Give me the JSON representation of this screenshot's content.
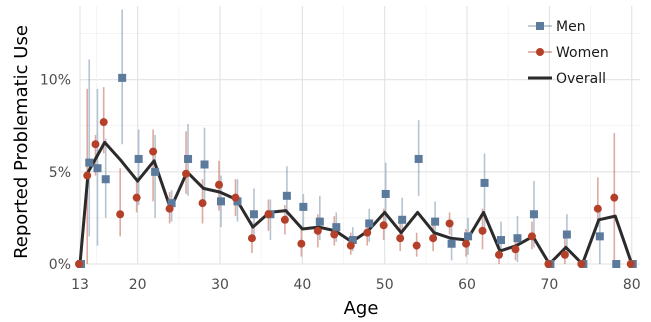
{
  "chart_data": {
    "type": "line",
    "xlabel": "Age",
    "ylabel": "Reported Problematic Use",
    "xlim": [
      13,
      81
    ],
    "ylim": [
      0,
      14
    ],
    "xticks": [
      13,
      20,
      30,
      40,
      50,
      60,
      70,
      80
    ],
    "xtick_labels": [
      "13",
      "20",
      "30",
      "40",
      "50",
      "60",
      "70",
      "80"
    ],
    "yticks": [
      0,
      5,
      10
    ],
    "ytick_labels": [
      "0%",
      "5%",
      "10%"
    ],
    "grid": true,
    "legend_position": "top-right",
    "x": [
      13,
      14,
      15,
      16,
      18,
      20,
      22,
      24,
      26,
      28,
      30,
      32,
      34,
      36,
      38,
      40,
      42,
      44,
      46,
      48,
      50,
      52,
      54,
      56,
      58,
      60,
      62,
      64,
      66,
      68,
      70,
      72,
      74,
      76,
      78,
      80
    ],
    "series": [
      {
        "name": "Men",
        "color": "#5b7a9c",
        "marker": "square",
        "values": [
          0,
          5.5,
          5.2,
          4.6,
          10.1,
          5.7,
          5.0,
          3.3,
          5.7,
          5.4,
          3.4,
          3.4,
          2.7,
          2.7,
          3.7,
          3.1,
          2.3,
          2.0,
          1.3,
          2.2,
          3.8,
          2.4,
          5.7,
          2.3,
          1.1,
          1.5,
          4.4,
          1.3,
          1.4,
          2.7,
          0,
          1.6,
          0,
          1.5,
          0,
          0
        ],
        "err_low": [
          0,
          1.5,
          1.0,
          2.5,
          6.5,
          3.2,
          2.5,
          2.3,
          3.7,
          3.3,
          2.0,
          2.3,
          1.3,
          1.3,
          2.2,
          1.9,
          1.3,
          1.2,
          0.7,
          1.2,
          2.0,
          1.2,
          3.7,
          1.3,
          0.2,
          0.5,
          1.8,
          0.3,
          0.1,
          0.9,
          0,
          0.3,
          0,
          0,
          0,
          0
        ],
        "err_high": [
          0,
          11.1,
          9.5,
          6.8,
          13.8,
          7.3,
          7.0,
          4.0,
          7.6,
          7.4,
          4.8,
          4.6,
          4.1,
          3.5,
          5.3,
          3.8,
          3.7,
          2.8,
          2.0,
          3.0,
          5.5,
          3.6,
          7.8,
          3.4,
          2.1,
          2.5,
          6.0,
          2.3,
          2.6,
          4.5,
          0,
          2.7,
          0,
          3.0,
          0,
          0
        ]
      },
      {
        "name": "Women",
        "color": "#b5402a",
        "marker": "circle",
        "values": [
          0,
          4.8,
          6.5,
          7.7,
          2.7,
          3.6,
          6.1,
          3.0,
          4.9,
          3.3,
          4.3,
          3.6,
          1.4,
          2.7,
          2.4,
          1.1,
          1.8,
          1.6,
          1.0,
          1.7,
          2.1,
          1.4,
          1.0,
          1.4,
          2.2,
          1.1,
          1.8,
          0.5,
          0.8,
          1.5,
          0,
          0.5,
          0,
          3.0,
          3.6,
          0
        ],
        "err_low": [
          0,
          0,
          4.8,
          6.0,
          1.5,
          2.8,
          3.4,
          2.2,
          3.8,
          2.2,
          2.9,
          2.6,
          0.6,
          1.8,
          1.6,
          0.4,
          0.9,
          1.0,
          0.5,
          1.0,
          1.3,
          0.7,
          0.4,
          0.7,
          1.6,
          0.4,
          0.8,
          0,
          0.2,
          0.8,
          0,
          0,
          0,
          2.0,
          0,
          0
        ],
        "err_high": [
          0,
          9.5,
          7.0,
          9.6,
          5.2,
          4.7,
          7.3,
          3.9,
          7.2,
          4.6,
          5.6,
          4.6,
          2.3,
          3.5,
          3.2,
          2.0,
          2.7,
          2.6,
          1.7,
          2.4,
          3.0,
          2.4,
          1.7,
          2.3,
          2.8,
          1.9,
          3.0,
          1.4,
          1.6,
          2.3,
          0,
          1.5,
          0,
          4.7,
          7.1,
          0
        ]
      },
      {
        "name": "Overall",
        "color": "#2b2b2b",
        "marker": "none",
        "values": [
          0,
          5.0,
          5.8,
          6.6,
          5.6,
          4.5,
          5.6,
          3.0,
          5.0,
          4.1,
          3.9,
          3.5,
          2.0,
          2.8,
          2.9,
          1.9,
          2.0,
          1.8,
          1.2,
          1.8,
          2.8,
          1.7,
          2.8,
          1.7,
          1.4,
          1.3,
          2.8,
          0.7,
          1.0,
          1.5,
          0,
          0.9,
          0,
          2.4,
          2.6,
          0
        ]
      }
    ]
  }
}
